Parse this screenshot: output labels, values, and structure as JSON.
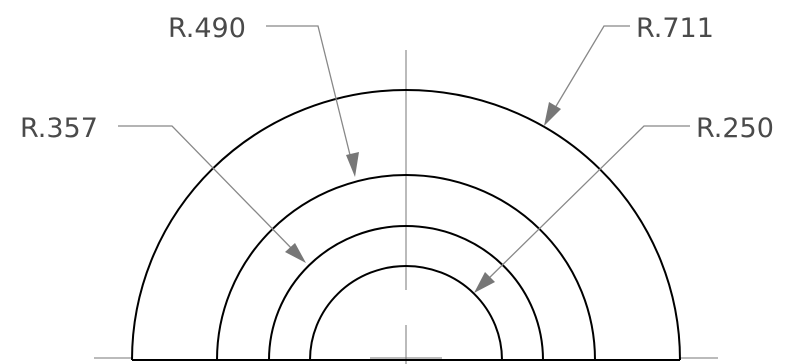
{
  "drawing": {
    "title": "",
    "dimensions": [
      {
        "id": "r711",
        "label": "R.711",
        "radius": 0.711
      },
      {
        "id": "r490",
        "label": "R.490",
        "radius": 0.49
      },
      {
        "id": "r357",
        "label": "R.357",
        "radius": 0.357
      },
      {
        "id": "r250",
        "label": "R.250",
        "radius": 0.25
      }
    ],
    "shape": "concentric semicircles"
  },
  "colors": {
    "outline": "#000000",
    "leader": "#888888",
    "text": "#4a4a4a",
    "centerline": "#777777"
  }
}
